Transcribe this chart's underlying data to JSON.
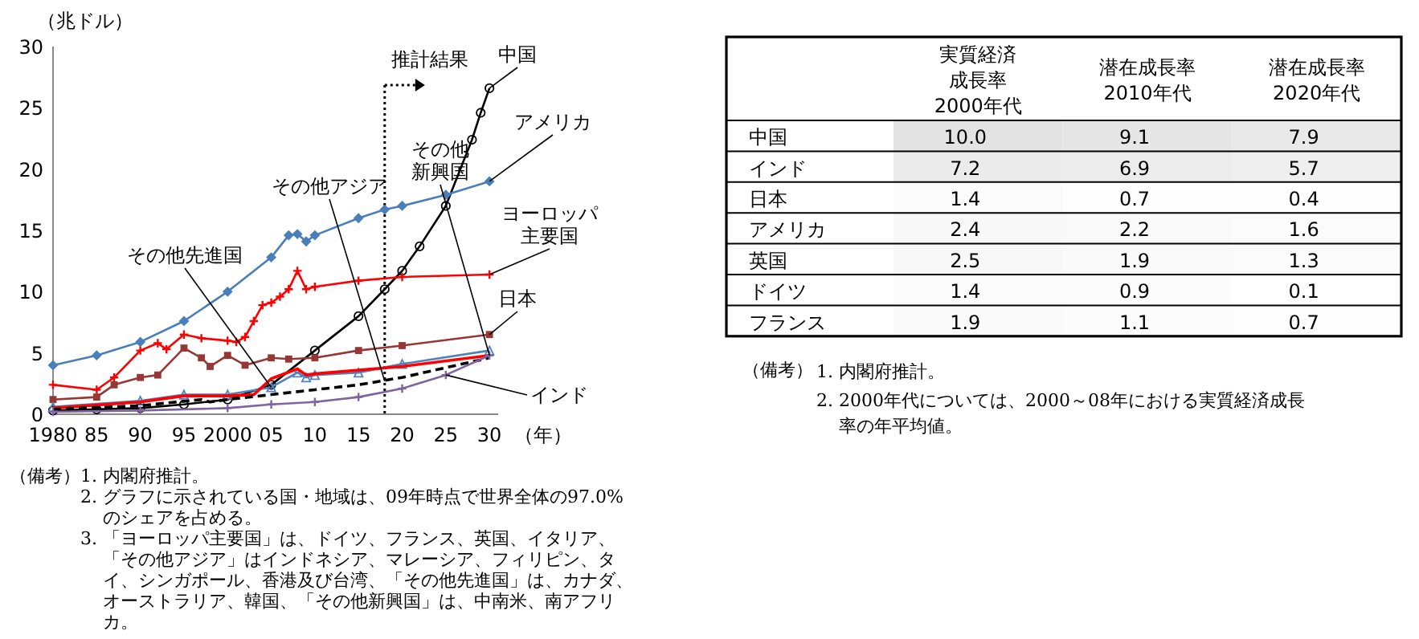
{
  "chart_data": [
    {
      "type": "line",
      "ylabel": "（兆ドル）",
      "xlabel": "（年）",
      "xlim": [
        1980,
        2031
      ],
      "ylim": [
        0,
        30
      ],
      "yticks": [
        0,
        5,
        10,
        15,
        20,
        25,
        30
      ],
      "xticks": [
        {
          "value": 1980,
          "label": "1980"
        },
        {
          "value": 1985,
          "label": "85"
        },
        {
          "value": 1990,
          "label": "90"
        },
        {
          "value": 1995,
          "label": "95"
        },
        {
          "value": 2000,
          "label": "2000"
        },
        {
          "value": 2005,
          "label": "05"
        },
        {
          "value": 2010,
          "label": "10"
        },
        {
          "value": 2015,
          "label": "15"
        },
        {
          "value": 2020,
          "label": "20"
        },
        {
          "value": 2025,
          "label": "25"
        },
        {
          "value": 2030,
          "label": "30"
        }
      ],
      "grid": false,
      "series": [
        {
          "color": "#000000",
          "marker": "circle",
          "x": [
            1980,
            1985,
            1990,
            1995,
            2000,
            2005,
            2010,
            2015,
            2018,
            2020,
            2022,
            2025,
            2028,
            2029,
            2030
          ],
          "values": [
            0.3,
            0.4,
            0.5,
            0.8,
            1.2,
            2.4,
            5.2,
            8.0,
            10.2,
            11.7,
            13.7,
            17.0,
            22.4,
            24.6,
            26.6
          ]
        },
        {
          "color": "#4a7ebb",
          "marker": "diamond",
          "x": [
            1980,
            1985,
            1990,
            1995,
            2000,
            2005,
            2007,
            2008,
            2009,
            2010,
            2015,
            2018,
            2020,
            2025,
            2030
          ],
          "values": [
            4.0,
            4.8,
            5.9,
            7.6,
            10.0,
            12.8,
            14.6,
            14.7,
            14.1,
            14.6,
            16.0,
            16.7,
            17.0,
            17.9,
            19.0
          ]
        },
        {
          "color": "#ff0000",
          "marker": "cross",
          "x": [
            1980,
            1985,
            1987,
            1990,
            1992,
            1993,
            1995,
            1997,
            2000,
            2001,
            2002,
            2003,
            2004,
            2005,
            2006,
            2007,
            2008,
            2009,
            2010,
            2015,
            2020,
            2030
          ],
          "values": [
            2.4,
            2.0,
            3.0,
            5.2,
            5.8,
            5.3,
            6.5,
            6.2,
            6.0,
            5.9,
            6.3,
            7.6,
            8.9,
            9.1,
            9.6,
            10.2,
            11.7,
            10.2,
            10.4,
            10.9,
            11.2,
            11.4
          ]
        },
        {
          "color": "#953735",
          "marker": "square",
          "x": [
            1980,
            1985,
            1987,
            1990,
            1992,
            1995,
            1997,
            1998,
            2000,
            2002,
            2005,
            2007,
            2010,
            2015,
            2020,
            2030
          ],
          "values": [
            1.2,
            1.4,
            2.4,
            3.0,
            3.2,
            5.4,
            4.6,
            3.9,
            4.8,
            4.0,
            4.6,
            4.5,
            4.6,
            5.2,
            5.6,
            6.5
          ]
        },
        {
          "color": "#4f81bd",
          "marker": "triangle",
          "x": [
            1980,
            1990,
            1995,
            2000,
            2005,
            2008,
            2009,
            2010,
            2015,
            2020,
            2030
          ],
          "values": [
            0.6,
            1.1,
            1.6,
            1.6,
            2.2,
            3.4,
            3.0,
            3.2,
            3.4,
            4.1,
            5.2
          ]
        },
        {
          "color": "#ff0000",
          "marker": "none",
          "x": [
            1980,
            1990,
            1995,
            2000,
            2003,
            2005,
            2008,
            2009,
            2010,
            2020,
            2030
          ],
          "values": [
            0.5,
            1.0,
            1.5,
            1.5,
            1.6,
            2.9,
            3.7,
            3.2,
            3.3,
            3.9,
            4.8
          ]
        },
        {
          "color": "#000000",
          "marker": "none",
          "line_style": "dashed",
          "x": [
            1980,
            1990,
            1997,
            1998,
            2000,
            2005,
            2010,
            2015,
            2020,
            2030
          ],
          "values": [
            0.4,
            0.7,
            1.2,
            1.0,
            1.2,
            1.6,
            2.0,
            2.4,
            3.0,
            4.6
          ]
        },
        {
          "color": "#8064a2",
          "marker": "cross",
          "x": [
            1980,
            1990,
            2000,
            2005,
            2010,
            2015,
            2020,
            2025,
            2030
          ],
          "values": [
            0.2,
            0.3,
            0.5,
            0.8,
            1.0,
            1.4,
            2.1,
            3.2,
            4.8
          ]
        }
      ],
      "ref_lines": [
        {
          "axis": "x",
          "value": 2018,
          "label": "推計結果",
          "color": "#000000",
          "line_style": "dotted"
        }
      ],
      "annotations": [
        {
          "text": "中国",
          "x": 2030,
          "y": 26.6
        },
        {
          "text": "アメリカ",
          "x": 2030,
          "y": 19.0
        },
        {
          "text": "ヨーロッパ主要国",
          "x": 2030,
          "y": 11.4
        },
        {
          "text": "日本",
          "x": 2030,
          "y": 6.5
        },
        {
          "text": "その他先進国",
          "x": 2005,
          "y": 2.2
        },
        {
          "text": "その他アジア",
          "x": 2018,
          "y": 2.7
        },
        {
          "text": "その他新興国",
          "x": 2030,
          "y": 4.8
        },
        {
          "text": "インド",
          "x": 2025,
          "y": 3.2
        },
        "（備考）",
        "1. 内閣府推計。",
        "2. グラフに示されている国・地域は、09年時点で世界全体の97.0%のシェアを占める。",
        "3. 「ヨーロッパ主要国」は、ドイツ、フランス、英国、イタリア、「その他アジア」はインドネシア、マレーシア、フィリピン、タイ、シンガポール、香港及び台湾、「その他先進国」は、カナダ、オーストラリア、韓国、「その他新興国」は、中南米、南アフリカ。"
      ]
    },
    {
      "type": "heatmap",
      "categories": [
        "実質経済成長率2000年代",
        "潜在成長率2010年代",
        "潜在成長率2020年代"
      ],
      "y_categories": [
        "中国",
        "インド",
        "日本",
        "アメリカ",
        "英国",
        "ドイツ",
        "フランス"
      ],
      "cell_labels": [
        [
          "10.0",
          "9.1",
          "7.9"
        ],
        [
          "7.2",
          "6.9",
          "5.7"
        ],
        [
          "1.4",
          "0.7",
          "0.4"
        ],
        [
          "2.4",
          "2.2",
          "1.6"
        ],
        [
          "2.5",
          "1.9",
          "1.3"
        ],
        [
          "1.4",
          "0.9",
          "0.1"
        ],
        [
          "1.9",
          "1.1",
          "0.7"
        ]
      ],
      "cells": [
        [
          10.0,
          9.1,
          7.9
        ],
        [
          7.2,
          6.9,
          5.7
        ],
        [
          1.4,
          0.7,
          0.4
        ],
        [
          2.4,
          2.2,
          1.6
        ],
        [
          2.5,
          1.9,
          1.3
        ],
        [
          1.4,
          0.9,
          0.1
        ],
        [
          1.9,
          1.1,
          0.7
        ]
      ],
      "annotations": [
        "（備考）",
        "1. 内閣府推計。",
        "2. 2000年代については、2000～08年における実質経済成長率の年平均値。"
      ]
    }
  ]
}
